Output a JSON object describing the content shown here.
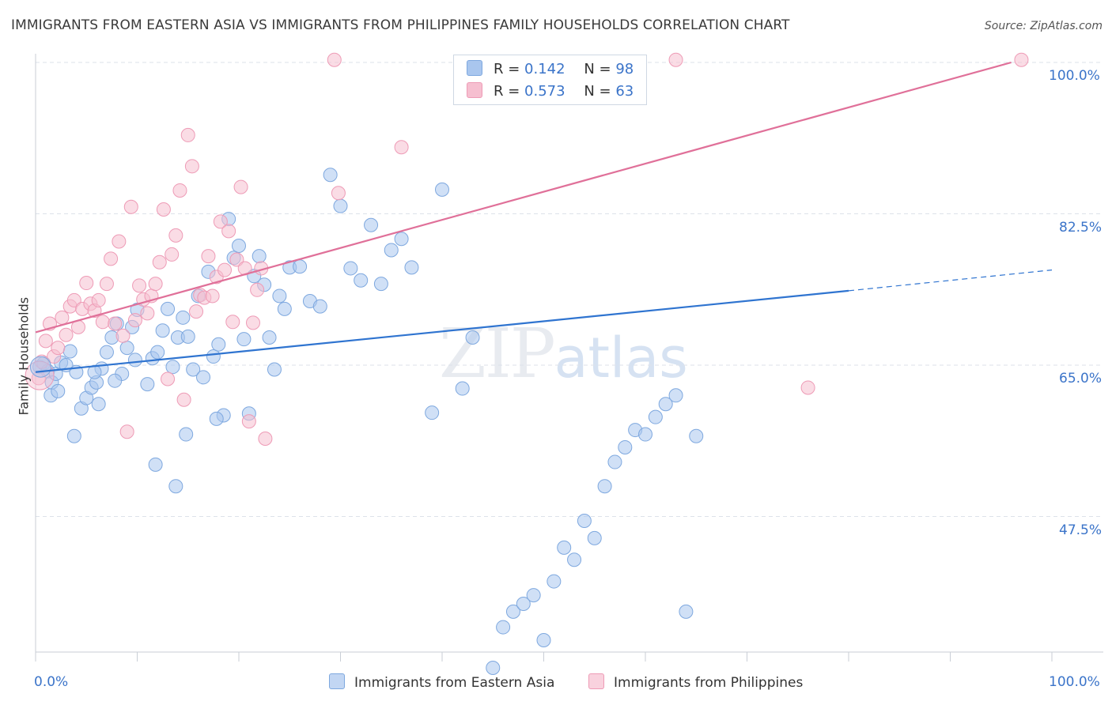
{
  "header": {
    "title": "IMMIGRANTS FROM EASTERN ASIA VS IMMIGRANTS FROM PHILIPPINES FAMILY HOUSEHOLDS CORRELATION CHART",
    "source": "Source: ZipAtlas.com"
  },
  "watermark": {
    "zip": "ZIP",
    "atlas": "atlas"
  },
  "legend": {
    "rows": [
      {
        "r_label": "R =",
        "r_value": "0.142",
        "n_label": "N =",
        "n_value": "98"
      },
      {
        "r_label": "R =",
        "r_value": "0.573",
        "n_label": "N =",
        "n_value": "63"
      }
    ]
  },
  "colors": {
    "blue_fill": "#a9c6ee",
    "blue_stroke": "#7ea8df",
    "blue_line": "#2f74d0",
    "pink_fill": "#f6bfd0",
    "pink_stroke": "#ee9bb6",
    "pink_line": "#e07099",
    "axis_text": "#3b74c9"
  },
  "chart_data": {
    "type": "scatter",
    "title": "IMMIGRANTS FROM EASTERN ASIA VS IMMIGRANTS FROM PHILIPPINES FAMILY HOUSEHOLDS CORRELATION CHART",
    "xlabel": "",
    "ylabel": "Family Households",
    "xlim": [
      0,
      100
    ],
    "ylim": [
      30,
      100
    ],
    "x_tick_labels": [
      "0.0%",
      "100.0%"
    ],
    "y_tick_labels": [
      "47.5%",
      "65.0%",
      "82.5%",
      "100.0%"
    ],
    "y_ticks": [
      47.5,
      65.0,
      82.5,
      100.0
    ],
    "grid": true,
    "legend_position": "top-center",
    "series": [
      {
        "name": "Immigrants from Eastern Asia",
        "color": "#a9c6ee",
        "trend": {
          "x0": 0,
          "y0": 64.2,
          "x1": 80,
          "y1": 73.6,
          "dashed_to_x": 100,
          "dashed_to_y": 76.0
        },
        "points": [
          [
            0.4,
            64.8
          ],
          [
            0.8,
            65.2
          ],
          [
            1.2,
            64.3
          ],
          [
            1.6,
            63.0
          ],
          [
            2.0,
            64.0
          ],
          [
            2.5,
            65.3
          ],
          [
            3.0,
            65.0
          ],
          [
            1.5,
            61.5
          ],
          [
            2.2,
            62.0
          ],
          [
            3.4,
            66.6
          ],
          [
            4.0,
            64.2
          ],
          [
            4.5,
            60.0
          ],
          [
            5.0,
            61.2
          ],
          [
            5.5,
            62.4
          ],
          [
            6.0,
            63.0
          ],
          [
            6.5,
            64.6
          ],
          [
            7.0,
            66.5
          ],
          [
            7.5,
            68.2
          ],
          [
            8.0,
            69.8
          ],
          [
            8.5,
            64.0
          ],
          [
            9.0,
            67.0
          ],
          [
            9.5,
            69.4
          ],
          [
            10.0,
            71.4
          ],
          [
            11.0,
            62.8
          ],
          [
            11.5,
            65.8
          ],
          [
            12.0,
            66.5
          ],
          [
            12.5,
            69.0
          ],
          [
            13.0,
            71.5
          ],
          [
            13.5,
            64.8
          ],
          [
            14.0,
            68.2
          ],
          [
            14.5,
            70.5
          ],
          [
            15.0,
            68.3
          ],
          [
            15.5,
            64.5
          ],
          [
            16.0,
            73.0
          ],
          [
            16.5,
            63.6
          ],
          [
            17.0,
            75.8
          ],
          [
            17.5,
            66.0
          ],
          [
            18.0,
            67.4
          ],
          [
            18.5,
            59.2
          ],
          [
            19.0,
            81.9
          ],
          [
            19.5,
            77.4
          ],
          [
            20.0,
            78.8
          ],
          [
            20.5,
            68.0
          ],
          [
            21.0,
            59.4
          ],
          [
            21.5,
            75.3
          ],
          [
            22.0,
            77.6
          ],
          [
            22.5,
            74.3
          ],
          [
            23.0,
            68.2
          ],
          [
            23.5,
            64.5
          ],
          [
            24.0,
            73.0
          ],
          [
            24.5,
            71.5
          ],
          [
            25.0,
            76.3
          ],
          [
            26.0,
            76.4
          ],
          [
            27.0,
            72.4
          ],
          [
            28.0,
            71.8
          ],
          [
            29.0,
            87.0
          ],
          [
            30.0,
            83.4
          ],
          [
            31.0,
            76.2
          ],
          [
            32.0,
            74.8
          ],
          [
            33.0,
            81.2
          ],
          [
            34.0,
            74.4
          ],
          [
            35.0,
            78.3
          ],
          [
            36.0,
            79.6
          ],
          [
            37.0,
            76.3
          ],
          [
            39.0,
            59.5
          ],
          [
            40.0,
            85.3
          ],
          [
            42.0,
            62.3
          ],
          [
            43.0,
            68.2
          ],
          [
            45.0,
            30.0
          ],
          [
            46.0,
            34.7
          ],
          [
            47.0,
            36.5
          ],
          [
            48.0,
            37.4
          ],
          [
            49.0,
            38.4
          ],
          [
            50.0,
            33.2
          ],
          [
            51.0,
            40.0
          ],
          [
            52.0,
            43.9
          ],
          [
            53.0,
            42.5
          ],
          [
            54.0,
            47.0
          ],
          [
            55.0,
            45.0
          ],
          [
            56.0,
            51.0
          ],
          [
            57.0,
            53.8
          ],
          [
            58.0,
            55.5
          ],
          [
            59.0,
            57.5
          ],
          [
            60.0,
            57.0
          ],
          [
            61.0,
            59.0
          ],
          [
            62.0,
            60.5
          ],
          [
            63.0,
            61.5
          ],
          [
            64.0,
            36.5
          ],
          [
            65.0,
            56.8
          ],
          [
            6.2,
            60.5
          ],
          [
            3.8,
            56.8
          ],
          [
            11.8,
            53.5
          ],
          [
            14.8,
            57.0
          ],
          [
            13.8,
            51.0
          ],
          [
            17.8,
            58.8
          ],
          [
            7.8,
            63.2
          ],
          [
            5.8,
            64.2
          ],
          [
            9.8,
            65.6
          ]
        ]
      },
      {
        "name": "Immigrants from Philippines",
        "color": "#f6bfd0",
        "trend": {
          "x0": 0,
          "y0": 68.8,
          "x1": 96,
          "y1": 100.0
        },
        "points": [
          [
            0.3,
            63.5
          ],
          [
            0.6,
            65.4
          ],
          [
            1.0,
            67.8
          ],
          [
            1.4,
            69.8
          ],
          [
            1.8,
            66.0
          ],
          [
            2.2,
            67.0
          ],
          [
            2.6,
            70.5
          ],
          [
            3.0,
            68.5
          ],
          [
            3.4,
            71.8
          ],
          [
            3.8,
            72.5
          ],
          [
            4.2,
            69.4
          ],
          [
            4.6,
            71.5
          ],
          [
            5.0,
            74.5
          ],
          [
            5.4,
            72.1
          ],
          [
            5.8,
            71.3
          ],
          [
            6.2,
            72.5
          ],
          [
            6.6,
            70.0
          ],
          [
            7.0,
            74.4
          ],
          [
            7.4,
            77.3
          ],
          [
            7.8,
            69.8
          ],
          [
            8.2,
            79.3
          ],
          [
            8.6,
            68.4
          ],
          [
            9.0,
            57.3
          ],
          [
            9.4,
            83.3
          ],
          [
            9.8,
            70.2
          ],
          [
            10.2,
            74.2
          ],
          [
            10.6,
            72.6
          ],
          [
            11.0,
            71.0
          ],
          [
            11.4,
            73.0
          ],
          [
            11.8,
            74.4
          ],
          [
            12.2,
            76.9
          ],
          [
            12.6,
            83.0
          ],
          [
            13.0,
            63.4
          ],
          [
            13.4,
            77.8
          ],
          [
            13.8,
            80.0
          ],
          [
            14.2,
            85.2
          ],
          [
            14.6,
            61.0
          ],
          [
            15.0,
            91.6
          ],
          [
            15.4,
            88.0
          ],
          [
            15.8,
            71.2
          ],
          [
            16.2,
            73.1
          ],
          [
            16.6,
            72.8
          ],
          [
            17.0,
            77.6
          ],
          [
            17.4,
            73.0
          ],
          [
            17.8,
            75.2
          ],
          [
            18.2,
            81.6
          ],
          [
            18.6,
            76.0
          ],
          [
            19.0,
            80.5
          ],
          [
            19.4,
            70.0
          ],
          [
            19.8,
            77.2
          ],
          [
            20.2,
            85.6
          ],
          [
            20.6,
            76.2
          ],
          [
            21.0,
            58.5
          ],
          [
            21.4,
            69.9
          ],
          [
            21.8,
            73.7
          ],
          [
            22.2,
            76.2
          ],
          [
            22.6,
            56.5
          ],
          [
            29.4,
            100.3
          ],
          [
            29.8,
            84.9
          ],
          [
            36.0,
            90.2
          ],
          [
            63.0,
            100.3
          ],
          [
            97.0,
            100.3
          ],
          [
            76.0,
            62.4
          ]
        ]
      }
    ]
  },
  "axes": {
    "y_title": "Family Households",
    "y_labels": [
      "100.0%",
      "82.5%",
      "65.0%",
      "47.5%"
    ],
    "x_left": "0.0%",
    "x_right": "100.0%"
  },
  "bottom_legend": {
    "series_a": "Immigrants from Eastern Asia",
    "series_b": "Immigrants from Philippines"
  }
}
